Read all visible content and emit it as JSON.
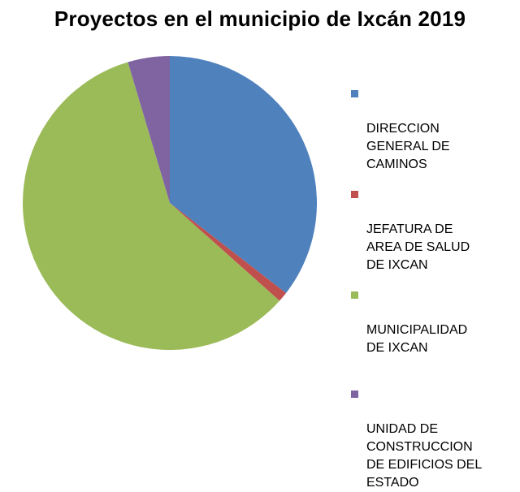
{
  "chart_data": {
    "type": "pie",
    "title": "Proyectos en el municipio de Ixcán 2019",
    "categories": [
      "DIRECCION\nGENERAL DE\nCAMINOS",
      "JEFATURA DE\nAREA DE SALUD\nDE IXCAN",
      "MUNICIPALIDAD\nDE IXCAN",
      "UNIDAD DE\nCONSTRUCCION\nDE EDIFICIOS DEL\nESTADO"
    ],
    "values": [
      35.5,
      1.1,
      58.8,
      4.6
    ],
    "colors": [
      "#4f81bd",
      "#c0504d",
      "#9bbb59",
      "#8064a2"
    ],
    "legend": "right"
  }
}
